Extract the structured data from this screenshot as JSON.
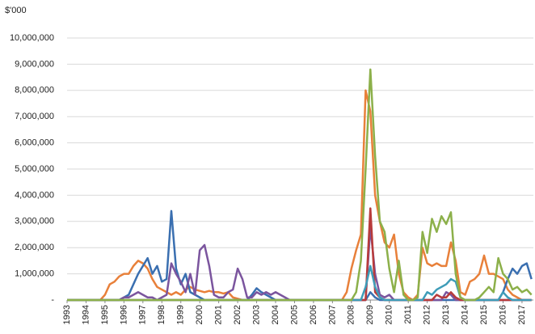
{
  "chart_data": {
    "type": "line",
    "y_label": "$'000",
    "x": [
      1993,
      1993.25,
      1993.5,
      1993.75,
      1994,
      1994.25,
      1994.5,
      1994.75,
      1995,
      1995.25,
      1995.5,
      1995.75,
      1996,
      1996.25,
      1996.5,
      1996.75,
      1997,
      1997.25,
      1997.5,
      1997.75,
      1998,
      1998.25,
      1998.5,
      1998.75,
      1999,
      1999.25,
      1999.5,
      1999.75,
      2000,
      2000.25,
      2000.5,
      2000.75,
      2001,
      2001.25,
      2001.5,
      2001.75,
      2002,
      2002.25,
      2002.5,
      2002.75,
      2003,
      2003.25,
      2003.5,
      2003.75,
      2004,
      2004.25,
      2004.5,
      2004.75,
      2005,
      2005.25,
      2005.5,
      2005.75,
      2006,
      2006.25,
      2006.5,
      2006.75,
      2007,
      2007.25,
      2007.5,
      2007.75,
      2008,
      2008.25,
      2008.5,
      2008.75,
      2009,
      2009.25,
      2009.5,
      2009.75,
      2010,
      2010.25,
      2010.5,
      2010.75,
      2011,
      2011.25,
      2011.5,
      2011.75,
      2012,
      2012.25,
      2012.5,
      2012.75,
      2013,
      2013.25,
      2013.5,
      2013.75,
      2014,
      2014.25,
      2014.5,
      2014.75,
      2015,
      2015.25,
      2015.5,
      2015.75,
      2016,
      2016.25,
      2016.5,
      2016.75,
      2017,
      2017.25,
      2017.5
    ],
    "series": [
      {
        "color": "#e8803a",
        "values": [
          0,
          0,
          0,
          0,
          0,
          0,
          0,
          0,
          200000,
          600000,
          700000,
          900000,
          1000000,
          1000000,
          1300000,
          1500000,
          1400000,
          1200000,
          800000,
          500000,
          400000,
          300000,
          200000,
          300000,
          200000,
          400000,
          500000,
          400000,
          350000,
          300000,
          350000,
          300000,
          300000,
          250000,
          300000,
          100000,
          50000,
          0,
          0,
          0,
          0,
          0,
          0,
          0,
          0,
          0,
          0,
          0,
          0,
          0,
          0,
          0,
          0,
          0,
          0,
          0,
          0,
          0,
          0,
          300000,
          1200000,
          1900000,
          2500000,
          8000000,
          7200000,
          4000000,
          3000000,
          2200000,
          2000000,
          2500000,
          1000000,
          300000,
          100000,
          0,
          200000,
          2000000,
          1400000,
          1300000,
          1400000,
          1300000,
          1300000,
          2200000,
          1500000,
          300000,
          200000,
          700000,
          800000,
          1000000,
          1700000,
          1000000,
          1000000,
          900000,
          800000,
          400000,
          200000,
          100000,
          0,
          0,
          0
        ]
      },
      {
        "color": "#3a6fb0",
        "values": [
          0,
          0,
          0,
          0,
          0,
          0,
          0,
          0,
          0,
          0,
          0,
          0,
          100000,
          200000,
          600000,
          1000000,
          1300000,
          1600000,
          1000000,
          1300000,
          700000,
          800000,
          3400000,
          1200000,
          600000,
          1000000,
          300000,
          200000,
          100000,
          0,
          0,
          0,
          0,
          0,
          0,
          0,
          0,
          0,
          0,
          200000,
          450000,
          300000,
          200000,
          100000,
          0,
          0,
          0,
          0,
          0,
          0,
          0,
          0,
          0,
          0,
          0,
          0,
          0,
          0,
          0,
          0,
          0,
          0,
          0,
          0,
          300000,
          100000,
          0,
          0,
          0,
          0,
          0,
          0,
          0,
          0,
          0,
          0,
          0,
          0,
          0,
          0,
          0,
          0,
          0,
          0,
          0,
          0,
          0,
          0,
          0,
          0,
          0,
          0,
          300000,
          800000,
          1200000,
          1000000,
          1300000,
          1400000,
          800000
        ]
      },
      {
        "color": "#7b559e",
        "values": [
          0,
          0,
          0,
          0,
          0,
          0,
          0,
          0,
          0,
          0,
          0,
          0,
          100000,
          100000,
          200000,
          300000,
          200000,
          100000,
          100000,
          0,
          100000,
          200000,
          1400000,
          1000000,
          700000,
          300000,
          1000000,
          200000,
          1900000,
          2100000,
          1300000,
          200000,
          100000,
          100000,
          300000,
          400000,
          1200000,
          800000,
          100000,
          100000,
          300000,
          200000,
          300000,
          200000,
          300000,
          200000,
          100000,
          0,
          0,
          0,
          0,
          0,
          0,
          0,
          0,
          0,
          0,
          0,
          0,
          0,
          0,
          0,
          0,
          0,
          2800000,
          1000000,
          200000,
          100000,
          200000,
          0,
          0,
          0,
          0,
          0,
          0,
          0,
          0,
          0,
          0,
          0,
          300000,
          200000,
          0,
          0,
          0,
          0,
          0,
          0,
          0,
          0,
          0,
          0,
          0,
          0,
          0,
          0,
          0,
          0,
          0
        ]
      },
      {
        "color": "#b83b3b",
        "values": [
          0,
          0,
          0,
          0,
          0,
          0,
          0,
          0,
          0,
          0,
          0,
          0,
          0,
          0,
          0,
          0,
          0,
          0,
          0,
          0,
          0,
          0,
          0,
          0,
          0,
          0,
          0,
          0,
          0,
          0,
          0,
          0,
          0,
          0,
          0,
          0,
          0,
          0,
          0,
          0,
          0,
          0,
          0,
          0,
          0,
          0,
          0,
          0,
          0,
          0,
          0,
          0,
          0,
          0,
          0,
          0,
          0,
          0,
          0,
          0,
          0,
          0,
          0,
          0,
          3500000,
          300000,
          100000,
          0,
          0,
          0,
          0,
          0,
          0,
          0,
          0,
          0,
          0,
          0,
          200000,
          100000,
          100000,
          300000,
          100000,
          0,
          0,
          0,
          0,
          0,
          0,
          0,
          0,
          0,
          0,
          0,
          0,
          0,
          0,
          0,
          0
        ]
      },
      {
        "color": "#3e9cb8",
        "values": [
          0,
          0,
          0,
          0,
          0,
          0,
          0,
          0,
          0,
          0,
          0,
          0,
          0,
          0,
          0,
          0,
          0,
          0,
          0,
          0,
          0,
          0,
          0,
          0,
          0,
          0,
          0,
          0,
          0,
          0,
          0,
          0,
          0,
          0,
          0,
          0,
          0,
          0,
          0,
          0,
          0,
          0,
          0,
          0,
          0,
          0,
          0,
          0,
          0,
          0,
          0,
          0,
          0,
          0,
          0,
          0,
          0,
          0,
          0,
          0,
          0,
          0,
          0,
          500000,
          1300000,
          500000,
          100000,
          0,
          0,
          0,
          0,
          0,
          0,
          0,
          0,
          0,
          300000,
          200000,
          400000,
          500000,
          600000,
          800000,
          700000,
          100000,
          0,
          0,
          0,
          0,
          0,
          0,
          0,
          0,
          300000,
          100000,
          0,
          0,
          0,
          0,
          0
        ]
      },
      {
        "color": "#8cb04a",
        "values": [
          0,
          0,
          0,
          0,
          0,
          0,
          0,
          0,
          0,
          0,
          0,
          0,
          0,
          0,
          0,
          0,
          0,
          0,
          0,
          0,
          0,
          0,
          0,
          0,
          0,
          0,
          0,
          0,
          0,
          0,
          0,
          0,
          0,
          0,
          0,
          0,
          0,
          0,
          0,
          0,
          0,
          0,
          0,
          0,
          0,
          0,
          0,
          0,
          0,
          0,
          0,
          0,
          0,
          0,
          0,
          0,
          0,
          0,
          0,
          0,
          0,
          300000,
          1500000,
          5000000,
          8800000,
          5500000,
          3000000,
          2600000,
          1200000,
          300000,
          1500000,
          200000,
          0,
          0,
          100000,
          2600000,
          1800000,
          3100000,
          2600000,
          3200000,
          2900000,
          3350000,
          1000000,
          100000,
          0,
          0,
          0,
          100000,
          300000,
          500000,
          300000,
          1600000,
          1000000,
          800000,
          400000,
          500000,
          300000,
          400000,
          200000
        ]
      }
    ],
    "xlim": [
      1993,
      2017.6
    ],
    "xticks": [
      1993,
      1994,
      1995,
      1996,
      1997,
      1998,
      1999,
      2000,
      2001,
      2002,
      2003,
      2004,
      2005,
      2006,
      2007,
      2008,
      2009,
      2010,
      2011,
      2012,
      2013,
      2014,
      2015,
      2016,
      2017
    ],
    "ylim": [
      0,
      10000000
    ],
    "yticks": [
      {
        "value": 0,
        "label": "-"
      },
      {
        "value": 1000000,
        "label": "1,000,000"
      },
      {
        "value": 2000000,
        "label": "2,000,000"
      },
      {
        "value": 3000000,
        "label": "3,000,000"
      },
      {
        "value": 4000000,
        "label": "4,000,000"
      },
      {
        "value": 5000000,
        "label": "5,000,000"
      },
      {
        "value": 6000000,
        "label": "6,000,000"
      },
      {
        "value": 7000000,
        "label": "7,000,000"
      },
      {
        "value": 8000000,
        "label": "8,000,000"
      },
      {
        "value": 9000000,
        "label": "9,000,000"
      },
      {
        "value": 10000000,
        "label": "10,000,000"
      }
    ],
    "grid": true
  }
}
